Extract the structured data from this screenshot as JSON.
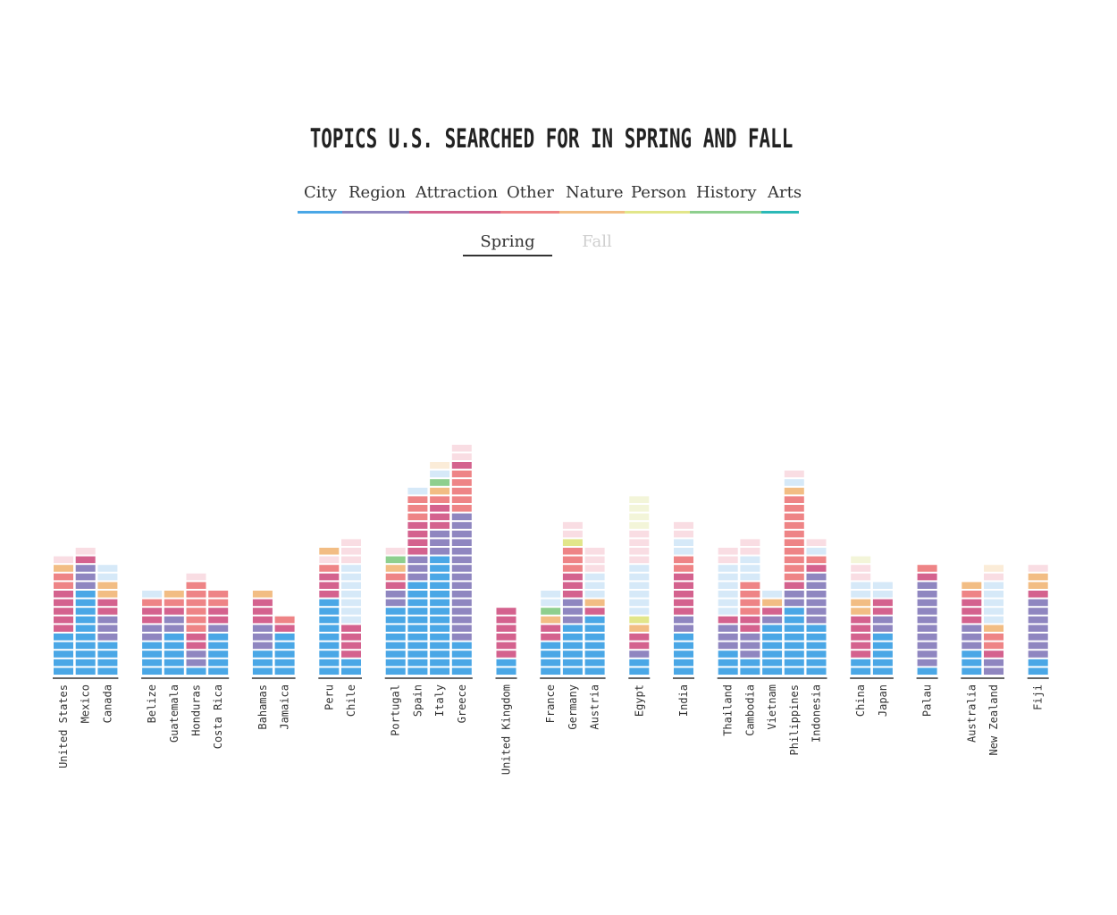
{
  "title": "Topics U.S. Searched For in Spring and Fall",
  "legend": [
    {
      "label": "City",
      "color": "#4aa7e6"
    },
    {
      "label": "Region",
      "color": "#8f86c0"
    },
    {
      "label": "Attraction",
      "color": "#d4628e"
    },
    {
      "label": "Other",
      "color": "#ee8486"
    },
    {
      "label": "Nature",
      "color": "#f2bd84"
    },
    {
      "label": "Person",
      "color": "#e2e68a"
    },
    {
      "label": "History",
      "color": "#8ecf8e"
    },
    {
      "label": "Arts",
      "color": "#2bb9b7"
    }
  ],
  "season_tabs": {
    "spring": "Spring",
    "fall": "Fall",
    "active": "Spring"
  },
  "chart_data": {
    "type": "bar",
    "stacked": true,
    "title": "Topics U.S. Searched For in Spring and Fall",
    "season": "Spring",
    "groups": [
      {
        "countries": [
          {
            "name": "United States",
            "segments": [
              [
                "City",
                5
              ],
              [
                "Attraction",
                5
              ],
              [
                "Other",
                2
              ],
              [
                "Nature",
                1
              ],
              [
                "Other-light",
                1
              ]
            ]
          },
          {
            "name": "Mexico",
            "segments": [
              [
                "City",
                10
              ],
              [
                "Region",
                3
              ],
              [
                "Attraction",
                1
              ],
              [
                "Other-light",
                1
              ]
            ]
          },
          {
            "name": "Canada",
            "segments": [
              [
                "City",
                4
              ],
              [
                "Region",
                3
              ],
              [
                "Attraction",
                2
              ],
              [
                "Nature",
                2
              ],
              [
                "City-light",
                2
              ]
            ]
          }
        ]
      },
      {
        "countries": [
          {
            "name": "Belize",
            "segments": [
              [
                "City",
                4
              ],
              [
                "Region",
                2
              ],
              [
                "Attraction",
                2
              ],
              [
                "Other",
                1
              ],
              [
                "City-light",
                1
              ]
            ]
          },
          {
            "name": "Guatemala",
            "segments": [
              [
                "City",
                5
              ],
              [
                "Region",
                2
              ],
              [
                "Attraction",
                1
              ],
              [
                "Other",
                1
              ],
              [
                "Nature",
                1
              ]
            ]
          },
          {
            "name": "Honduras",
            "segments": [
              [
                "City",
                1
              ],
              [
                "Region",
                2
              ],
              [
                "Attraction",
                2
              ],
              [
                "Other",
                6
              ],
              [
                "Other-light",
                1
              ]
            ]
          },
          {
            "name": "Costa Rica",
            "segments": [
              [
                "City",
                5
              ],
              [
                "Region",
                1
              ],
              [
                "Attraction",
                2
              ],
              [
                "Other",
                2
              ]
            ]
          }
        ]
      },
      {
        "countries": [
          {
            "name": "Bahamas",
            "segments": [
              [
                "City",
                3
              ],
              [
                "Region",
                3
              ],
              [
                "Attraction",
                3
              ],
              [
                "Nature",
                1
              ]
            ]
          },
          {
            "name": "Jamaica",
            "segments": [
              [
                "City",
                5
              ],
              [
                "Attraction",
                1
              ],
              [
                "Other",
                1
              ]
            ]
          }
        ]
      },
      {
        "countries": [
          {
            "name": "Peru",
            "segments": [
              [
                "City",
                9
              ],
              [
                "Attraction",
                3
              ],
              [
                "Other",
                1
              ],
              [
                "Other-light",
                1
              ],
              [
                "Nature",
                1
              ]
            ]
          },
          {
            "name": "Chile",
            "segments": [
              [
                "City",
                2
              ],
              [
                "Attraction",
                4
              ],
              [
                "City-light",
                7
              ],
              [
                "Other-light",
                3
              ]
            ]
          }
        ]
      },
      {
        "countries": [
          {
            "name": "Portugal",
            "segments": [
              [
                "City",
                8
              ],
              [
                "Region",
                2
              ],
              [
                "Attraction",
                1
              ],
              [
                "Other",
                1
              ],
              [
                "Nature",
                1
              ],
              [
                "History",
                1
              ],
              [
                "Other-light",
                1
              ]
            ]
          },
          {
            "name": "Spain",
            "segments": [
              [
                "City",
                11
              ],
              [
                "Region",
                3
              ],
              [
                "Attraction",
                4
              ],
              [
                "Other",
                3
              ],
              [
                "City-light",
                1
              ]
            ]
          },
          {
            "name": "Italy",
            "segments": [
              [
                "City",
                14
              ],
              [
                "Region",
                3
              ],
              [
                "Attraction",
                3
              ],
              [
                "Other",
                1
              ],
              [
                "Nature",
                1
              ],
              [
                "History",
                1
              ],
              [
                "City-light",
                1
              ],
              [
                "Nature-light",
                1
              ]
            ]
          },
          {
            "name": "Greece",
            "segments": [
              [
                "City",
                4
              ],
              [
                "Region",
                15
              ],
              [
                "Other",
                5
              ],
              [
                "Attraction",
                1
              ],
              [
                "Other-light",
                2
              ]
            ]
          }
        ]
      },
      {
        "countries": [
          {
            "name": "United Kingdom",
            "segments": [
              [
                "City",
                2
              ],
              [
                "Attraction",
                6
              ]
            ]
          }
        ]
      },
      {
        "countries": [
          {
            "name": "France",
            "segments": [
              [
                "City",
                4
              ],
              [
                "Attraction",
                2
              ],
              [
                "Nature",
                1
              ],
              [
                "History",
                1
              ],
              [
                "City-light",
                1
              ],
              [
                "City-light",
                1
              ]
            ]
          },
          {
            "name": "Germany",
            "segments": [
              [
                "City",
                6
              ],
              [
                "Region",
                3
              ],
              [
                "Attraction",
                3
              ],
              [
                "Other",
                3
              ],
              [
                "Person",
                1
              ],
              [
                "Other-light",
                1
              ],
              [
                "Other-light",
                1
              ]
            ]
          },
          {
            "name": "Austria",
            "segments": [
              [
                "City",
                7
              ],
              [
                "Attraction",
                1
              ],
              [
                "Nature",
                1
              ],
              [
                "City-light",
                3
              ],
              [
                "Other-light",
                3
              ]
            ]
          }
        ]
      },
      {
        "countries": [
          {
            "name": "Egypt",
            "segments": [
              [
                "City",
                2
              ],
              [
                "Region",
                1
              ],
              [
                "Attraction",
                2
              ],
              [
                "Nature",
                1
              ],
              [
                "Person",
                1
              ],
              [
                "City-light",
                6
              ],
              [
                "Other-light",
                4
              ],
              [
                "Person-light",
                4
              ]
            ]
          }
        ]
      },
      {
        "countries": [
          {
            "name": "India",
            "segments": [
              [
                "City",
                5
              ],
              [
                "Region",
                2
              ],
              [
                "Attraction",
                5
              ],
              [
                "Other",
                2
              ],
              [
                "City-light",
                2
              ],
              [
                "Other-light",
                2
              ]
            ]
          }
        ]
      },
      {
        "countries": [
          {
            "name": "Thailand",
            "segments": [
              [
                "City",
                3
              ],
              [
                "Region",
                3
              ],
              [
                "Attraction",
                1
              ],
              [
                "City-light",
                6
              ],
              [
                "Other-light",
                2
              ]
            ]
          },
          {
            "name": "Cambodia",
            "segments": [
              [
                "City",
                2
              ],
              [
                "Region",
                3
              ],
              [
                "Attraction",
                2
              ],
              [
                "Other",
                4
              ],
              [
                "City-light",
                3
              ],
              [
                "Other-light",
                2
              ]
            ]
          },
          {
            "name": "Vietnam",
            "segments": [
              [
                "City",
                6
              ],
              [
                "Region",
                1
              ],
              [
                "Attraction",
                1
              ],
              [
                "Nature",
                1
              ],
              [
                "City-light",
                1
              ]
            ]
          },
          {
            "name": "Philippines",
            "segments": [
              [
                "City",
                8
              ],
              [
                "Region",
                2
              ],
              [
                "Attraction",
                1
              ],
              [
                "Other",
                10
              ],
              [
                "Nature",
                1
              ],
              [
                "City-light",
                1
              ],
              [
                "Other-light",
                1
              ]
            ]
          },
          {
            "name": "Indonesia",
            "segments": [
              [
                "City",
                6
              ],
              [
                "Region",
                6
              ],
              [
                "Attraction",
                1
              ],
              [
                "Other",
                1
              ],
              [
                "City-light",
                1
              ],
              [
                "Other-light",
                1
              ]
            ]
          }
        ]
      },
      {
        "countries": [
          {
            "name": "China",
            "segments": [
              [
                "City",
                2
              ],
              [
                "Attraction",
                5
              ],
              [
                "Nature",
                2
              ],
              [
                "City-light",
                2
              ],
              [
                "Other-light",
                2
              ],
              [
                "Person-light",
                1
              ]
            ]
          },
          {
            "name": "Japan",
            "segments": [
              [
                "City",
                5
              ],
              [
                "Region",
                2
              ],
              [
                "Attraction",
                2
              ],
              [
                "City-light",
                2
              ]
            ]
          }
        ]
      },
      {
        "countries": [
          {
            "name": "Palau",
            "segments": [
              [
                "City",
                1
              ],
              [
                "Region",
                10
              ],
              [
                "Attraction",
                1
              ],
              [
                "Other",
                1
              ]
            ]
          }
        ]
      },
      {
        "countries": [
          {
            "name": "Australia",
            "segments": [
              [
                "City",
                3
              ],
              [
                "Region",
                3
              ],
              [
                "Attraction",
                3
              ],
              [
                "Other",
                1
              ],
              [
                "Nature",
                1
              ]
            ]
          },
          {
            "name": "New Zealand",
            "segments": [
              [
                "Region",
                2
              ],
              [
                "Attraction",
                1
              ],
              [
                "Other",
                2
              ],
              [
                "Nature",
                1
              ],
              [
                "City-light",
                5
              ],
              [
                "Other-light",
                1
              ],
              [
                "Nature-light",
                1
              ]
            ]
          }
        ]
      },
      {
        "countries": [
          {
            "name": "Fiji",
            "segments": [
              [
                "City",
                2
              ],
              [
                "Region",
                7
              ],
              [
                "Attraction",
                1
              ],
              [
                "Nature",
                2
              ],
              [
                "Other-light",
                1
              ]
            ]
          }
        ]
      }
    ],
    "light_colors": {
      "City-light": "#d6e9f8",
      "Other-light": "#f9dde3",
      "Nature-light": "#fbecd8",
      "Person-light": "#f3f5d9"
    }
  }
}
